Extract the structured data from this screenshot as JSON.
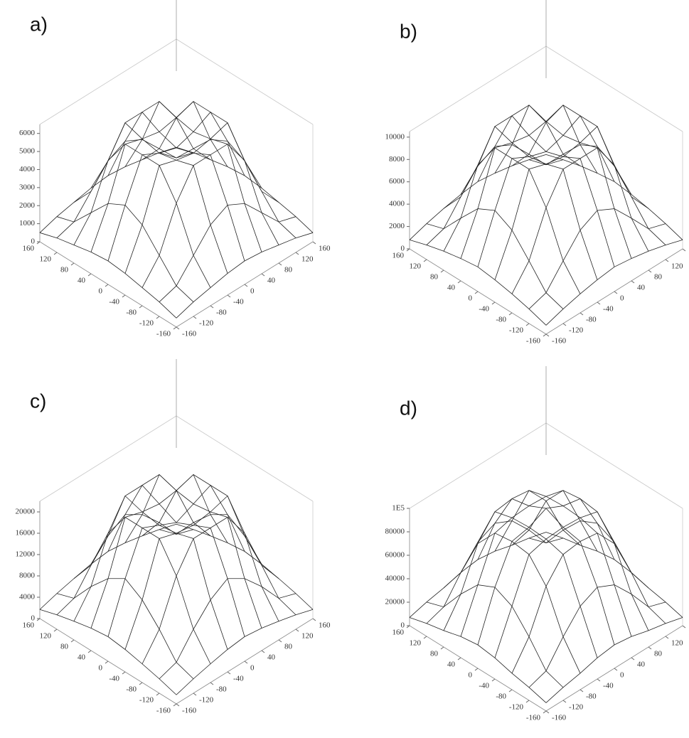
{
  "chart_data": [
    {
      "type": "surface",
      "title": "a)",
      "x": [
        -160,
        -120,
        -80,
        -40,
        0,
        40,
        80,
        120,
        160
      ],
      "y": [
        -160,
        -120,
        -80,
        -40,
        0,
        40,
        80,
        120,
        160
      ],
      "z": [
        [
          500,
          800,
          1000,
          1200,
          1300,
          1200,
          1000,
          800,
          500
        ],
        [
          800,
          1100,
          2200,
          3300,
          3800,
          3300,
          2200,
          1100,
          800
        ],
        [
          1000,
          2200,
          4500,
          6000,
          6000,
          6000,
          4500,
          2200,
          1000
        ],
        [
          1200,
          3300,
          6000,
          5700,
          5500,
          5700,
          6000,
          3300,
          1200
        ],
        [
          1300,
          3800,
          6000,
          5500,
          5200,
          5500,
          6000,
          3800,
          1300
        ],
        [
          1200,
          3300,
          6000,
          5700,
          5500,
          5700,
          6000,
          3300,
          1200
        ],
        [
          1000,
          2200,
          4500,
          6000,
          6000,
          6000,
          4500,
          2200,
          1000
        ],
        [
          800,
          1100,
          2200,
          3300,
          3800,
          3300,
          2200,
          1100,
          800
        ],
        [
          500,
          800,
          1000,
          1200,
          1300,
          1200,
          1000,
          800,
          500
        ]
      ],
      "xlim": [
        -160,
        160
      ],
      "ylim": [
        -160,
        160
      ],
      "zlim": [
        0,
        6500
      ],
      "xticks": [
        160,
        120,
        80,
        40,
        0,
        -40,
        -80,
        -120,
        -160
      ],
      "yticks": [
        -160,
        -120,
        -80,
        -40,
        0,
        40,
        80,
        120,
        160
      ],
      "zticks": [
        0,
        1000,
        2000,
        3000,
        4000,
        5000,
        6000
      ],
      "color": "#222222"
    },
    {
      "type": "surface",
      "title": "b)",
      "x": [
        -160,
        -120,
        -80,
        -40,
        0,
        40,
        80,
        120,
        160
      ],
      "y": [
        -160,
        -120,
        -80,
        -40,
        0,
        40,
        80,
        120,
        160
      ],
      "z": [
        [
          800,
          1300,
          1700,
          2000,
          2200,
          2000,
          1700,
          1300,
          800
        ],
        [
          1300,
          1800,
          3700,
          5500,
          6300,
          5500,
          3700,
          1800,
          1300
        ],
        [
          1700,
          3700,
          7500,
          10000,
          10000,
          10000,
          7500,
          3700,
          1700
        ],
        [
          2000,
          5500,
          10000,
          9500,
          9200,
          9500,
          10000,
          5500,
          2000
        ],
        [
          2200,
          6300,
          10000,
          9200,
          8700,
          9200,
          10000,
          6300,
          2200
        ],
        [
          2000,
          5500,
          10000,
          9500,
          9200,
          9500,
          10000,
          5500,
          2000
        ],
        [
          1700,
          3700,
          7500,
          10000,
          10000,
          10000,
          7500,
          3700,
          1700
        ],
        [
          1300,
          1800,
          3700,
          5500,
          6300,
          5500,
          3700,
          1800,
          1300
        ],
        [
          800,
          1300,
          1700,
          2000,
          2200,
          2000,
          1700,
          1300,
          800
        ]
      ],
      "xlim": [
        -160,
        160
      ],
      "ylim": [
        -160,
        160
      ],
      "zlim": [
        0,
        10500
      ],
      "xticks": [
        160,
        120,
        80,
        40,
        0,
        -40,
        -80,
        -120,
        -160
      ],
      "yticks": [
        -160,
        -120,
        -80,
        -40,
        0,
        40,
        80,
        120,
        160
      ],
      "zticks": [
        0,
        2000,
        4000,
        6000,
        8000,
        10000
      ],
      "color": "#222222"
    },
    {
      "type": "surface",
      "title": "c)",
      "x": [
        -160,
        -120,
        -80,
        -40,
        0,
        40,
        80,
        120,
        160
      ],
      "y": [
        -160,
        -120,
        -80,
        -40,
        0,
        40,
        80,
        120,
        160
      ],
      "z": [
        [
          1700,
          2700,
          3500,
          4200,
          4600,
          4200,
          3500,
          2700,
          1700
        ],
        [
          2700,
          3800,
          8000,
          11500,
          13500,
          11500,
          8000,
          3800,
          2700
        ],
        [
          3500,
          8000,
          16000,
          21000,
          21000,
          21000,
          16000,
          8000,
          3500
        ],
        [
          4200,
          11500,
          21000,
          20000,
          19500,
          20000,
          21000,
          11500,
          4200
        ],
        [
          4600,
          13500,
          21000,
          19500,
          18000,
          19500,
          21000,
          13500,
          4600
        ],
        [
          4200,
          11500,
          21000,
          20000,
          19500,
          20000,
          21000,
          11500,
          4200
        ],
        [
          3500,
          8000,
          16000,
          21000,
          21000,
          21000,
          16000,
          8000,
          3500
        ],
        [
          2700,
          3800,
          8000,
          11500,
          13500,
          11500,
          8000,
          3800,
          2700
        ],
        [
          1700,
          2700,
          3500,
          4200,
          4600,
          4200,
          3500,
          2700,
          1700
        ]
      ],
      "xlim": [
        -160,
        160
      ],
      "ylim": [
        -160,
        160
      ],
      "zlim": [
        0,
        22000
      ],
      "xticks": [
        160,
        120,
        80,
        40,
        0,
        -40,
        -80,
        -120,
        -160
      ],
      "yticks": [
        -160,
        -120,
        -80,
        -40,
        0,
        40,
        80,
        120,
        160
      ],
      "zticks": [
        0,
        4000,
        8000,
        12000,
        16000,
        20000
      ],
      "color": "#222222"
    },
    {
      "type": "surface",
      "title": "d)",
      "x": [
        -160,
        -120,
        -80,
        -40,
        0,
        40,
        80,
        120,
        160
      ],
      "y": [
        -160,
        -120,
        -80,
        -40,
        0,
        40,
        80,
        120,
        160
      ],
      "z": [
        [
          7000,
          11000,
          14000,
          18000,
          20000,
          18000,
          14000,
          11000,
          7000
        ],
        [
          11000,
          16000,
          36000,
          53000,
          60000,
          53000,
          36000,
          16000,
          11000
        ],
        [
          14000,
          36000,
          70000,
          88000,
          90000,
          88000,
          70000,
          36000,
          14000
        ],
        [
          18000,
          53000,
          88000,
          92000,
          93000,
          92000,
          88000,
          53000,
          18000
        ],
        [
          20000,
          60000,
          90000,
          93000,
          100000,
          93000,
          90000,
          60000,
          20000
        ],
        [
          18000,
          53000,
          88000,
          92000,
          93000,
          92000,
          88000,
          53000,
          18000
        ],
        [
          14000,
          36000,
          70000,
          88000,
          90000,
          88000,
          70000,
          36000,
          14000
        ],
        [
          11000,
          16000,
          36000,
          53000,
          60000,
          53000,
          36000,
          16000,
          11000
        ],
        [
          7000,
          11000,
          14000,
          18000,
          20000,
          18000,
          14000,
          11000,
          7000
        ]
      ],
      "xlim": [
        -160,
        160
      ],
      "ylim": [
        -160,
        160
      ],
      "zlim": [
        0,
        100000
      ],
      "xticks": [
        160,
        120,
        80,
        40,
        0,
        -40,
        -80,
        -120,
        -160
      ],
      "yticks": [
        -160,
        -120,
        -80,
        -40,
        0,
        40,
        80,
        120,
        160
      ],
      "zticks": [
        0,
        20000,
        40000,
        60000,
        80000,
        {
          "value": 100000,
          "label": "1E5"
        }
      ],
      "color": "#222222"
    }
  ]
}
